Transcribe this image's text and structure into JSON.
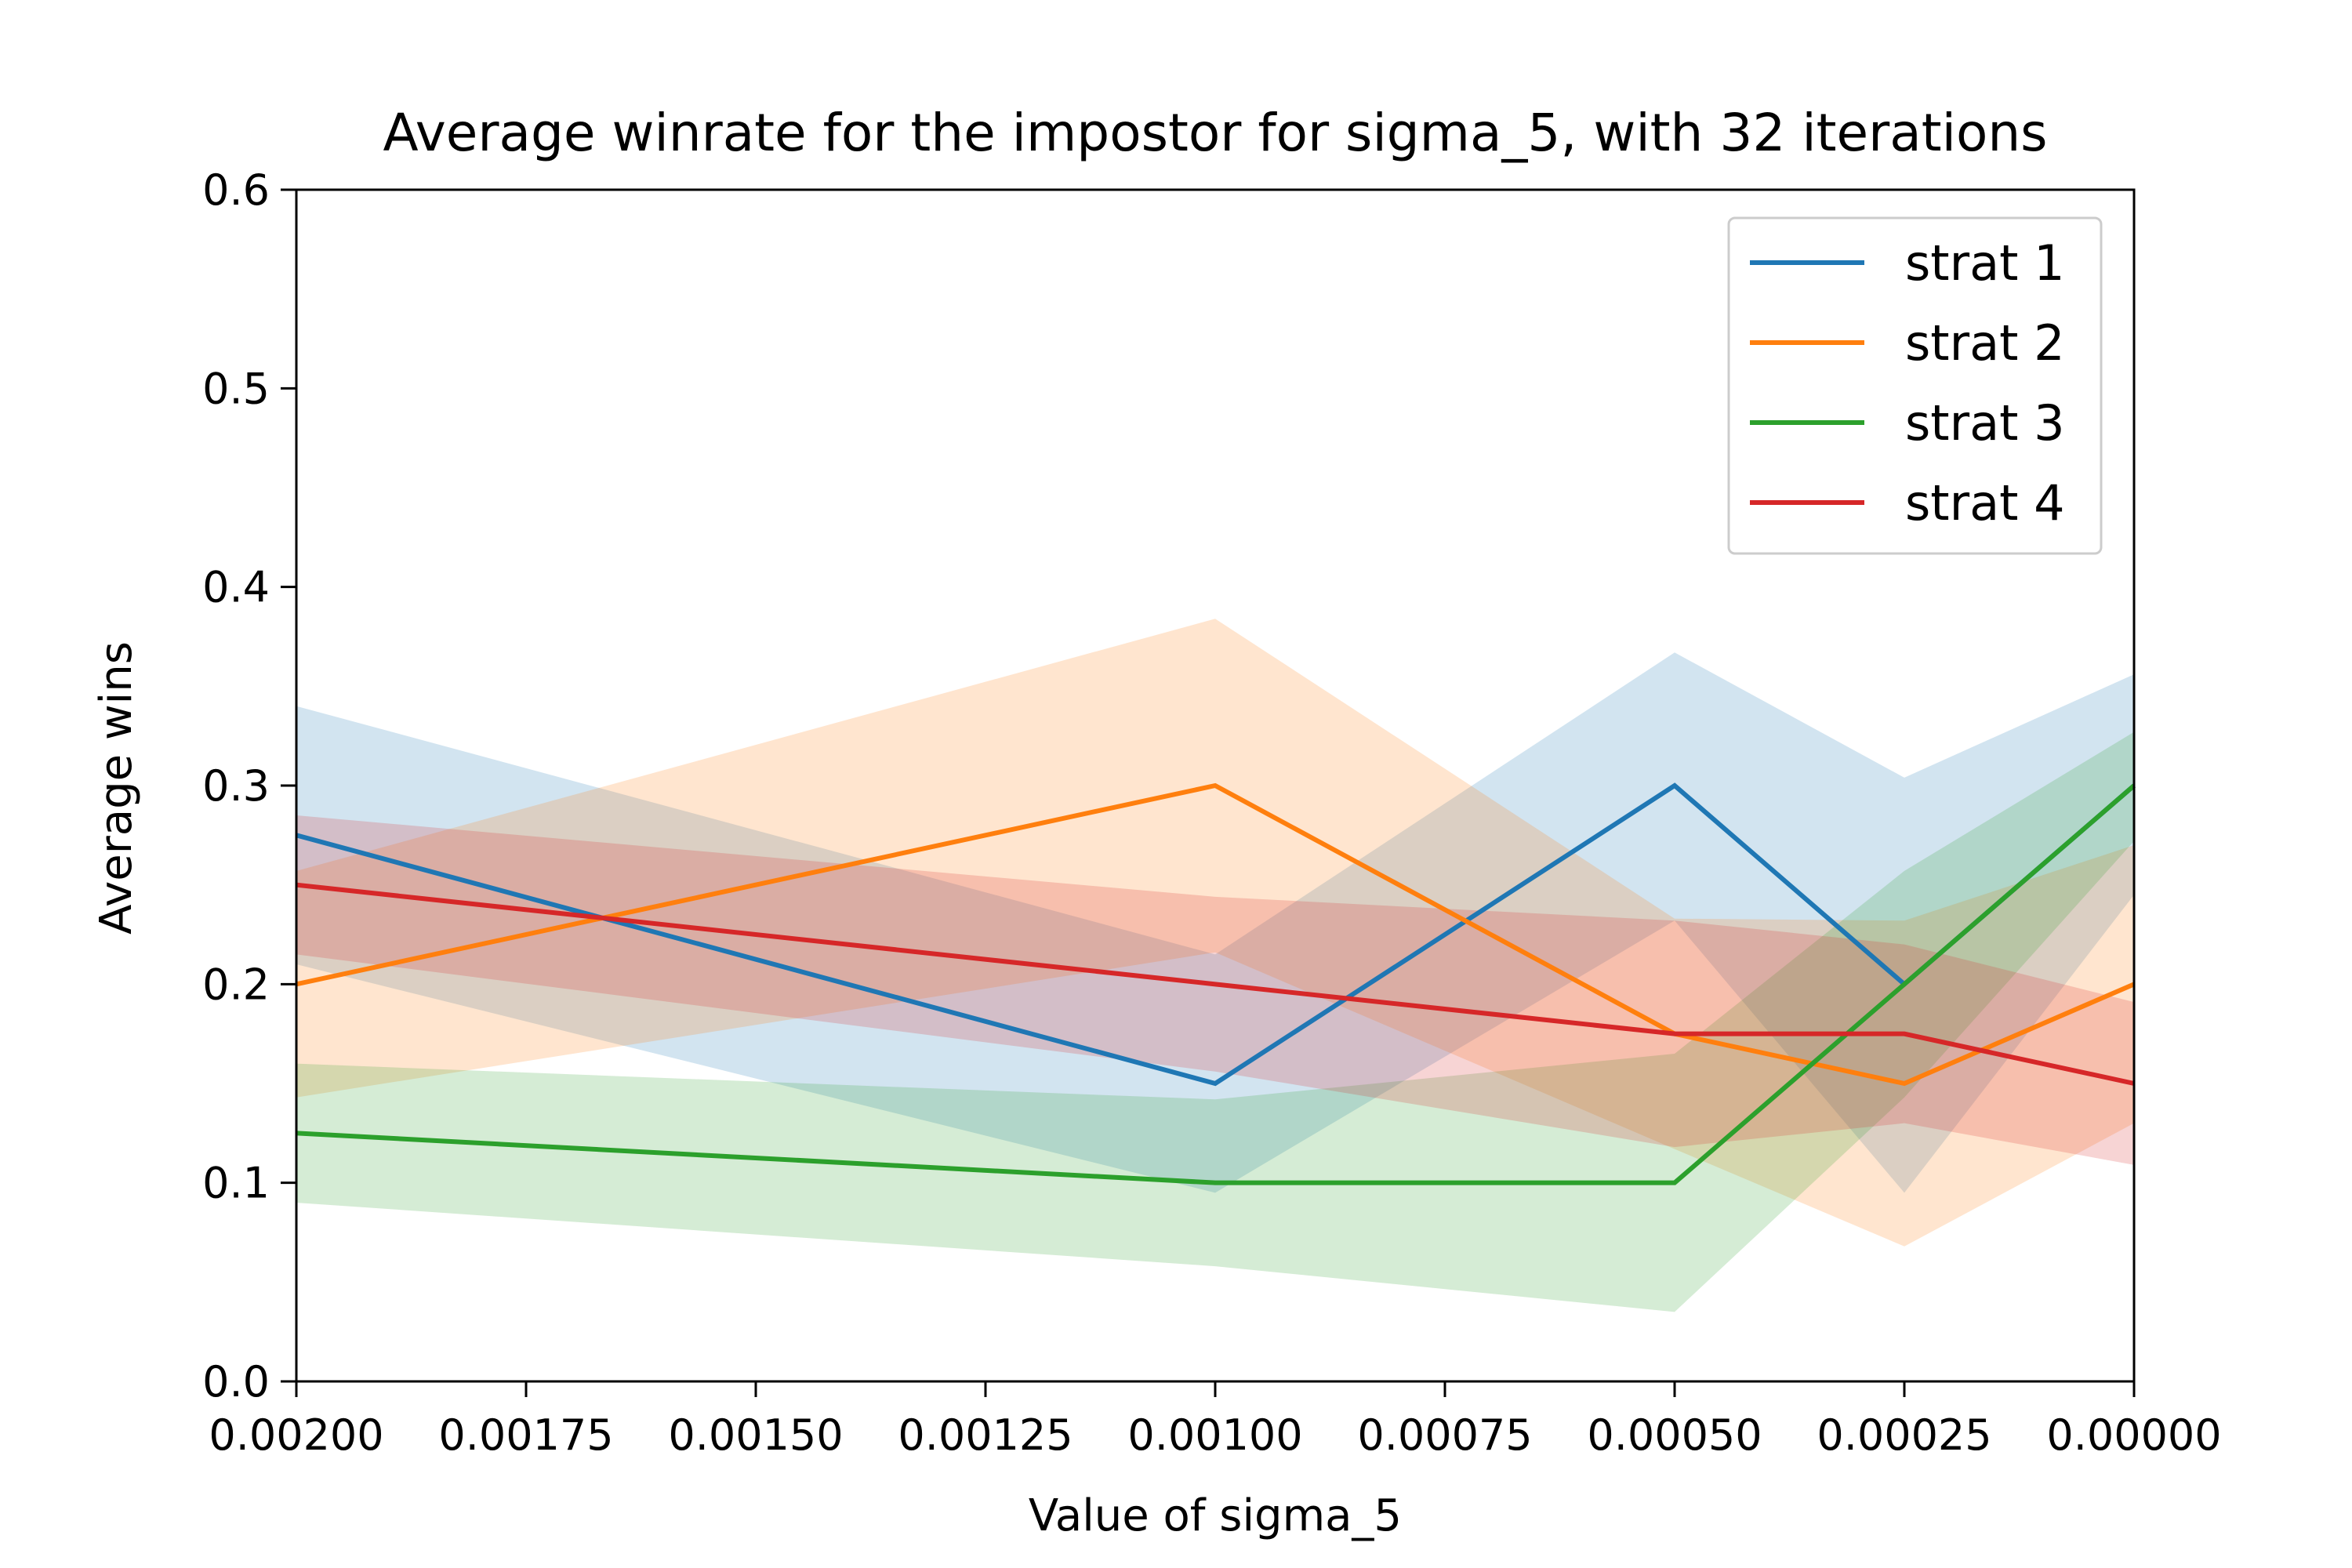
{
  "chart_data": {
    "type": "line",
    "title": "Average winrate for the impostor for sigma_5, with 32 iterations",
    "xlabel": "Value of sigma_5",
    "ylabel": "Average wins",
    "x": [
      0.002,
      0.001,
      0.0005,
      0.00025,
      0.0
    ],
    "xlim": [
      0.002,
      0.0
    ],
    "xaxis_inverted": true,
    "x_ticks": [
      0.002,
      0.00175,
      0.0015,
      0.00125,
      0.001,
      0.00075,
      0.0005,
      0.00025,
      0.0
    ],
    "x_tick_labels": [
      "0.00200",
      "0.00175",
      "0.00150",
      "0.00125",
      "0.00100",
      "0.00075",
      "0.00050",
      "0.00025",
      "0.00000"
    ],
    "ylim": [
      0.0,
      0.6
    ],
    "y_ticks": [
      0.0,
      0.1,
      0.2,
      0.3,
      0.4,
      0.5,
      0.6
    ],
    "y_tick_labels": [
      "0.0",
      "0.1",
      "0.2",
      "0.3",
      "0.4",
      "0.5",
      "0.6"
    ],
    "grid": false,
    "legend_position": "top-right",
    "series": [
      {
        "name": "strat 1",
        "color": "#1f77b4",
        "values": [
          0.275,
          0.15,
          0.3,
          0.2,
          0.3
        ],
        "band_lower": [
          0.21,
          0.095,
          0.232,
          0.095,
          0.245
        ],
        "band_upper": [
          0.34,
          0.215,
          0.367,
          0.304,
          0.356
        ]
      },
      {
        "name": "strat 2",
        "color": "#ff7f0e",
        "values": [
          0.2,
          0.3,
          0.175,
          0.15,
          0.2
        ],
        "band_lower": [
          0.143,
          0.216,
          0.117,
          0.068,
          0.13
        ],
        "band_upper": [
          0.257,
          0.384,
          0.233,
          0.232,
          0.27
        ]
      },
      {
        "name": "strat 3",
        "color": "#2ca02c",
        "values": [
          0.125,
          0.1,
          0.1,
          0.2,
          0.3
        ],
        "band_lower": [
          0.09,
          0.058,
          0.035,
          0.143,
          0.272
        ],
        "band_upper": [
          0.16,
          0.142,
          0.165,
          0.257,
          0.327
        ]
      },
      {
        "name": "strat 4",
        "color": "#d62728",
        "values": [
          0.25,
          0.2,
          0.175,
          0.175,
          0.15
        ],
        "band_lower": [
          0.215,
          0.156,
          0.118,
          0.13,
          0.109
        ],
        "band_upper": [
          0.285,
          0.244,
          0.232,
          0.22,
          0.191
        ]
      }
    ]
  }
}
